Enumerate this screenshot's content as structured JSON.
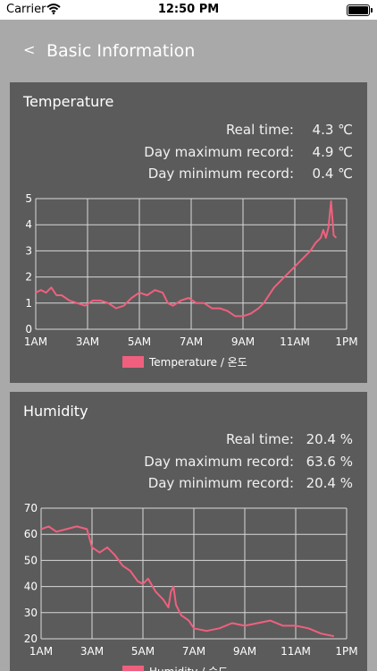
{
  "status_bar": {
    "carrier": "Carrier",
    "time": "12:50 PM"
  },
  "nav": {
    "back_label": "<",
    "title": "Basic Information"
  },
  "temperature": {
    "title": "Temperature",
    "real_time_label": "Real time:",
    "real_time_value": "4.3 ℃",
    "max_label": "Day maximum record:",
    "max_value": "4.9 ℃",
    "min_label": "Day minimum record:",
    "min_value": "0.4 ℃",
    "chart_data": {
      "type": "line",
      "x_ticks": [
        "1AM",
        "3AM",
        "5AM",
        "7AM",
        "9AM",
        "11AM",
        "1PM"
      ],
      "y_ticks": [
        "0",
        "1",
        "2",
        "3",
        "4",
        "5"
      ],
      "ylim": [
        0,
        5
      ],
      "xlim": [
        1,
        13
      ],
      "legend": "Temperature / 온도",
      "color": "#f0607e",
      "series": [
        {
          "name": "Temperature / 온도",
          "x": [
            1.0,
            1.2,
            1.4,
            1.6,
            1.8,
            2.0,
            2.3,
            2.6,
            2.9,
            3.2,
            3.5,
            3.8,
            4.1,
            4.4,
            4.7,
            5.0,
            5.3,
            5.6,
            5.9,
            6.1,
            6.3,
            6.6,
            6.9,
            7.2,
            7.5,
            7.8,
            8.1,
            8.4,
            8.7,
            9.0,
            9.3,
            9.6,
            9.8,
            10.0,
            10.2,
            10.4,
            10.6,
            10.8,
            11.0,
            11.2,
            11.4,
            11.6,
            11.8,
            12.0,
            12.1,
            12.2,
            12.3,
            12.4,
            12.5,
            12.6
          ],
          "y": [
            1.4,
            1.5,
            1.4,
            1.6,
            1.3,
            1.3,
            1.1,
            1.0,
            0.9,
            1.1,
            1.1,
            1.0,
            0.8,
            0.9,
            1.2,
            1.4,
            1.3,
            1.5,
            1.4,
            1.0,
            0.9,
            1.1,
            1.2,
            1.0,
            1.0,
            0.8,
            0.8,
            0.7,
            0.5,
            0.5,
            0.6,
            0.8,
            1.0,
            1.3,
            1.6,
            1.8,
            2.0,
            2.2,
            2.4,
            2.6,
            2.8,
            3.0,
            3.3,
            3.5,
            3.8,
            3.5,
            3.9,
            4.9,
            3.6,
            3.5
          ]
        }
      ]
    }
  },
  "humidity": {
    "title": "Humidity",
    "real_time_label": "Real time:",
    "real_time_value": "20.4 %",
    "max_label": "Day maximum record:",
    "max_value": "63.6 %",
    "min_label": "Day minimum record:",
    "min_value": "20.4 %",
    "chart_data": {
      "type": "line",
      "x_ticks": [
        "1AM",
        "3AM",
        "5AM",
        "7AM",
        "9AM",
        "11AM",
        "1PM"
      ],
      "y_ticks": [
        "20",
        "30",
        "40",
        "50",
        "60",
        "70"
      ],
      "ylim": [
        20,
        70
      ],
      "xlim": [
        1,
        13
      ],
      "legend": "Humidity / 습도",
      "color": "#f0607e",
      "series": [
        {
          "name": "Humidity / 습도",
          "x": [
            1.0,
            1.3,
            1.6,
            2.0,
            2.4,
            2.8,
            3.0,
            3.3,
            3.6,
            3.9,
            4.2,
            4.5,
            4.8,
            5.0,
            5.2,
            5.5,
            5.8,
            6.0,
            6.1,
            6.2,
            6.3,
            6.5,
            6.8,
            7.0,
            7.5,
            8.0,
            8.5,
            9.0,
            9.5,
            10.0,
            10.5,
            11.0,
            11.5,
            12.0,
            12.5
          ],
          "y": [
            62,
            63,
            61,
            62,
            63,
            62,
            55,
            53,
            55,
            52,
            48,
            46,
            42,
            41,
            43,
            38,
            35,
            32,
            38,
            40,
            33,
            29,
            27,
            24,
            23,
            24,
            26,
            25,
            26,
            27,
            25,
            25,
            24,
            22,
            21
          ]
        }
      ]
    }
  }
}
